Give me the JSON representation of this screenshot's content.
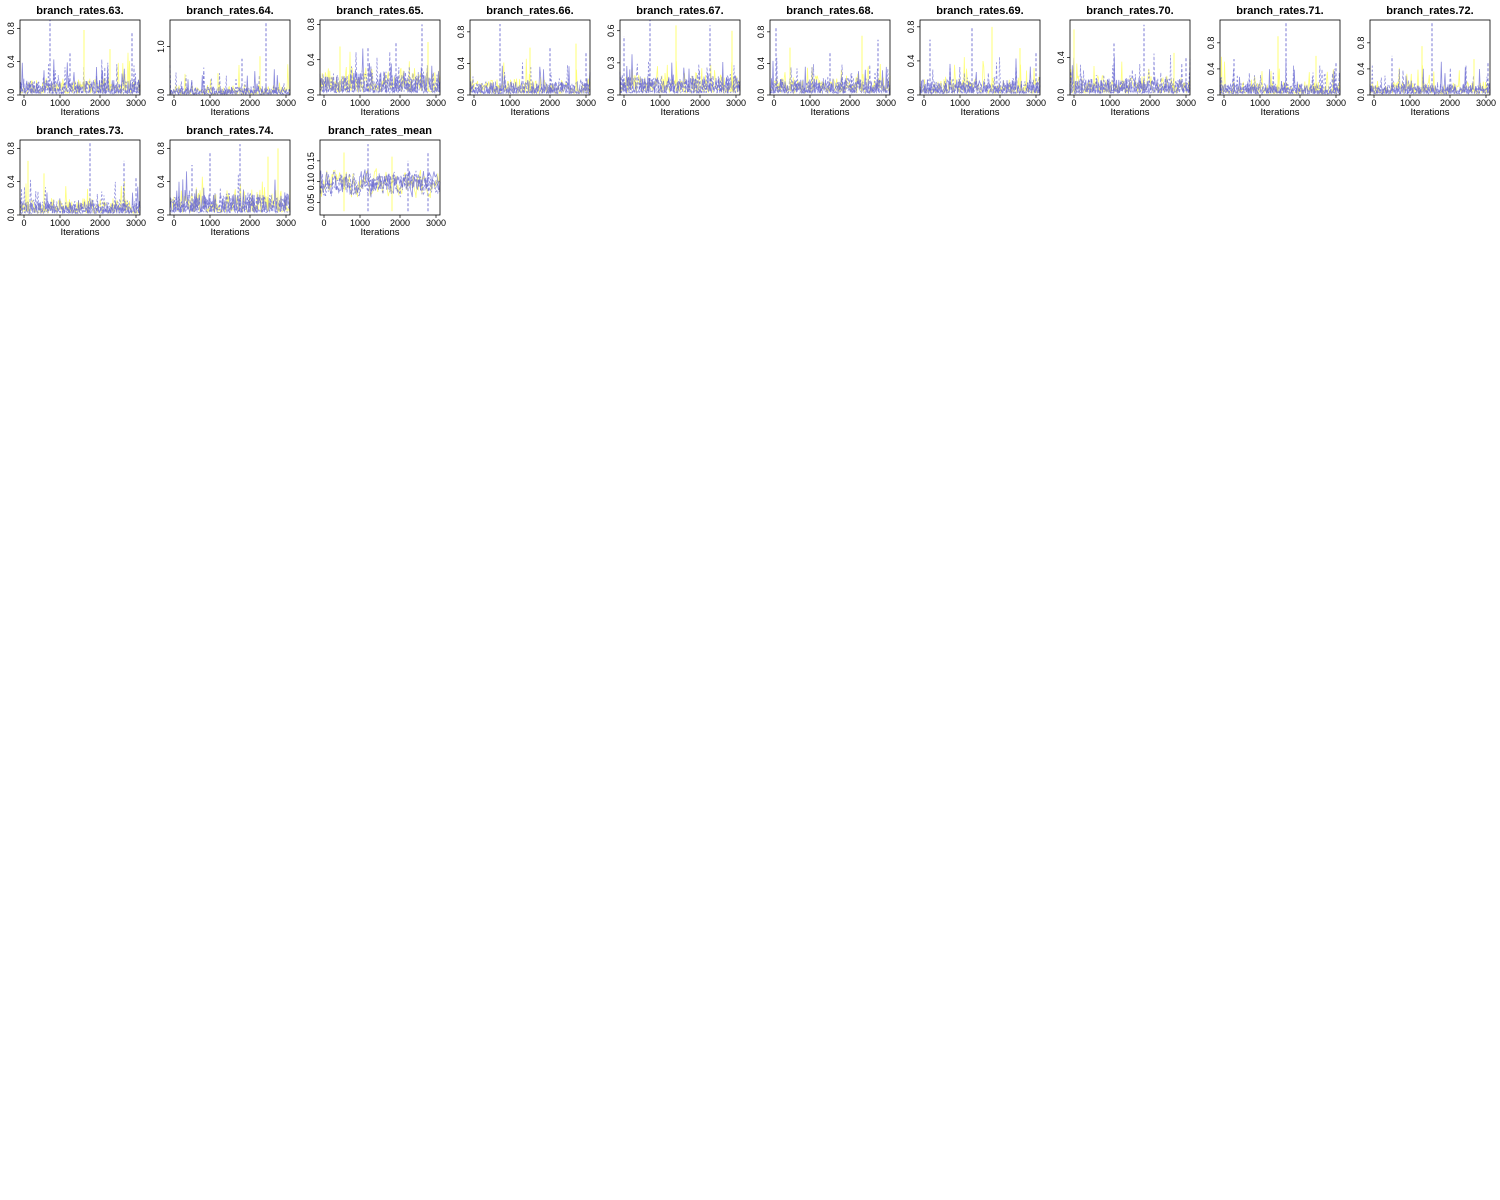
{
  "colors": {
    "chain_yellow": "#ffff66",
    "chain_blue": "#6a6ad2",
    "frame": "#000000",
    "background": "#ffffff"
  },
  "chart_data": [
    {
      "type": "line",
      "title": "branch_rates.63.",
      "xlabel": "Iterations",
      "ylabel": "",
      "xlim": [
        0,
        3000
      ],
      "ylim": [
        0,
        0.9
      ],
      "xticks": [
        "0",
        "1000",
        "2000",
        "3000"
      ],
      "yticks": [
        "0.0",
        "0.4",
        "0.8"
      ],
      "ytick_values": [
        0,
        0.4,
        0.8
      ],
      "series": [
        {
          "values_summary": {
            "typical": 0.1,
            "max": 0.9
          }
        },
        {
          "values_summary": {
            "typical": 0.1,
            "max": 0.75
          }
        }
      ],
      "spikes": [
        [
          750,
          0.9
        ],
        [
          1600,
          0.78
        ],
        [
          2800,
          0.75
        ],
        [
          2250,
          0.55
        ],
        [
          1250,
          0.5
        ]
      ],
      "seed": 63
    },
    {
      "type": "line",
      "title": "branch_rates.64.",
      "xlabel": "Iterations",
      "ylabel": "",
      "xlim": [
        0,
        3000
      ],
      "ylim": [
        0,
        1.55
      ],
      "xticks": [
        "0",
        "1000",
        "2000",
        "3000"
      ],
      "yticks": [
        "0.0",
        "1.0"
      ],
      "ytick_values": [
        0,
        1.0
      ],
      "series": [
        {
          "values_summary": {
            "typical": 0.1,
            "max": 1.5
          }
        }
      ],
      "spikes": [
        [
          2400,
          1.5
        ],
        [
          2250,
          0.8
        ],
        [
          1800,
          0.75
        ],
        [
          1200,
          0.45
        ],
        [
          400,
          0.4
        ]
      ],
      "seed": 64
    },
    {
      "type": "line",
      "title": "branch_rates.65.",
      "xlabel": "Iterations",
      "ylabel": "",
      "xlim": [
        0,
        3000
      ],
      "ylim": [
        0,
        0.85
      ],
      "xticks": [
        "0",
        "1000",
        "2000",
        "3000"
      ],
      "yticks": [
        "0.0",
        "0.4",
        "0.8"
      ],
      "ytick_values": [
        0,
        0.4,
        0.8
      ],
      "series": [
        {
          "values_summary": {
            "typical": 0.15,
            "max": 0.8
          }
        }
      ],
      "spikes": [
        [
          2550,
          0.8
        ],
        [
          2700,
          0.6
        ],
        [
          1200,
          0.55
        ],
        [
          500,
          0.55
        ],
        [
          1900,
          0.6
        ]
      ],
      "seed": 65
    },
    {
      "type": "line",
      "title": "branch_rates.66.",
      "xlabel": "Iterations",
      "ylabel": "",
      "xlim": [
        0,
        3000
      ],
      "ylim": [
        0,
        0.95
      ],
      "xticks": [
        "0",
        "1000",
        "2000",
        "3000"
      ],
      "yticks": [
        "0.0",
        "0.4",
        "0.8"
      ],
      "ytick_values": [
        0,
        0.4,
        0.8
      ],
      "series": [
        {
          "values_summary": {
            "typical": 0.1,
            "max": 0.9
          }
        }
      ],
      "spikes": [
        [
          750,
          0.9
        ],
        [
          1500,
          0.6
        ],
        [
          2000,
          0.6
        ],
        [
          2650,
          0.65
        ],
        [
          2900,
          0.55
        ]
      ],
      "seed": 66
    },
    {
      "type": "line",
      "title": "branch_rates.67.",
      "xlabel": "Iterations",
      "ylabel": "",
      "xlim": [
        0,
        3000
      ],
      "ylim": [
        0,
        0.7
      ],
      "xticks": [
        "0",
        "1000",
        "2000",
        "3000"
      ],
      "yticks": [
        "0.0",
        "0.3",
        "0.6"
      ],
      "ytick_values": [
        0,
        0.3,
        0.6
      ],
      "series": [
        {
          "values_summary": {
            "typical": 0.1,
            "max": 0.7
          }
        }
      ],
      "spikes": [
        [
          750,
          0.7
        ],
        [
          1400,
          0.65
        ],
        [
          2250,
          0.65
        ],
        [
          2800,
          0.6
        ],
        [
          100,
          0.55
        ]
      ],
      "seed": 67
    },
    {
      "type": "line",
      "title": "branch_rates.68.",
      "xlabel": "Iterations",
      "ylabel": "",
      "xlim": [
        0,
        3000
      ],
      "ylim": [
        0,
        0.95
      ],
      "xticks": [
        "0",
        "1000",
        "2000",
        "3000"
      ],
      "yticks": [
        "0.0",
        "0.4",
        "0.8"
      ],
      "ytick_values": [
        0,
        0.4,
        0.8
      ],
      "series": [
        {
          "values_summary": {
            "typical": 0.12,
            "max": 0.85
          }
        }
      ],
      "spikes": [
        [
          150,
          0.85
        ],
        [
          2300,
          0.75
        ],
        [
          2700,
          0.7
        ],
        [
          500,
          0.6
        ],
        [
          1500,
          0.55
        ]
      ],
      "seed": 68
    },
    {
      "type": "line",
      "title": "branch_rates.69.",
      "xlabel": "Iterations",
      "ylabel": "",
      "xlim": [
        0,
        3000
      ],
      "ylim": [
        0,
        0.88
      ],
      "xticks": [
        "0",
        "1000",
        "2000",
        "3000"
      ],
      "yticks": [
        "0.0",
        "0.4",
        "0.8"
      ],
      "ytick_values": [
        0,
        0.4,
        0.8
      ],
      "series": [
        {
          "values_summary": {
            "typical": 0.1,
            "max": 0.8
          }
        }
      ],
      "spikes": [
        [
          1300,
          0.8
        ],
        [
          1800,
          0.8
        ],
        [
          250,
          0.65
        ],
        [
          2500,
          0.55
        ],
        [
          2900,
          0.5
        ]
      ],
      "seed": 69
    },
    {
      "type": "line",
      "title": "branch_rates.70.",
      "xlabel": "Iterations",
      "ylabel": "",
      "xlim": [
        0,
        3000
      ],
      "ylim": [
        0,
        0.8
      ],
      "xticks": [
        "0",
        "1000",
        "2000",
        "3000"
      ],
      "yticks": [
        "0.0",
        "0.4"
      ],
      "ytick_values": [
        0,
        0.4
      ],
      "series": [
        {
          "values_summary": {
            "typical": 0.1,
            "max": 0.75
          }
        }
      ],
      "spikes": [
        [
          1850,
          0.75
        ],
        [
          100,
          0.7
        ],
        [
          1100,
          0.55
        ],
        [
          2600,
          0.45
        ],
        [
          2900,
          0.4
        ]
      ],
      "seed": 70
    },
    {
      "type": "line",
      "title": "branch_rates.71.",
      "xlabel": "Iterations",
      "ylabel": "",
      "xlim": [
        0,
        3000
      ],
      "ylim": [
        0,
        1.15
      ],
      "xticks": [
        "0",
        "1000",
        "2000",
        "3000"
      ],
      "yticks": [
        "0.0",
        "0.4",
        "0.8"
      ],
      "ytick_values": [
        0,
        0.4,
        0.8
      ],
      "series": [
        {
          "values_summary": {
            "typical": 0.1,
            "max": 1.1
          }
        }
      ],
      "spikes": [
        [
          1650,
          1.1
        ],
        [
          1450,
          0.9
        ],
        [
          350,
          0.55
        ],
        [
          2400,
          0.6
        ],
        [
          2900,
          0.5
        ]
      ],
      "seed": 71
    },
    {
      "type": "line",
      "title": "branch_rates.72.",
      "xlabel": "Iterations",
      "ylabel": "",
      "xlim": [
        0,
        3000
      ],
      "ylim": [
        0,
        1.15
      ],
      "xticks": [
        "0",
        "1000",
        "2000",
        "3000"
      ],
      "yticks": [
        "0.0",
        "0.4",
        "0.8"
      ],
      "ytick_values": [
        0,
        0.4,
        0.8
      ],
      "series": [
        {
          "values_summary": {
            "typical": 0.1,
            "max": 1.1
          }
        }
      ],
      "spikes": [
        [
          1550,
          1.1
        ],
        [
          1300,
          0.75
        ],
        [
          550,
          0.6
        ],
        [
          2600,
          0.55
        ],
        [
          2950,
          0.5
        ]
      ],
      "seed": 72
    },
    {
      "type": "line",
      "title": "branch_rates.73.",
      "xlabel": "Iterations",
      "ylabel": "",
      "xlim": [
        0,
        3000
      ],
      "ylim": [
        0,
        0.9
      ],
      "xticks": [
        "0",
        "1000",
        "2000",
        "3000"
      ],
      "yticks": [
        "0.0",
        "0.4",
        "0.8"
      ],
      "ytick_values": [
        0,
        0.4,
        0.8
      ],
      "series": [
        {
          "values_summary": {
            "typical": 0.1,
            "max": 0.88
          }
        }
      ],
      "spikes": [
        [
          1750,
          0.88
        ],
        [
          200,
          0.65
        ],
        [
          2600,
          0.65
        ],
        [
          600,
          0.5
        ],
        [
          2900,
          0.45
        ]
      ],
      "seed": 73
    },
    {
      "type": "line",
      "title": "branch_rates.74.",
      "xlabel": "Iterations",
      "ylabel": "",
      "xlim": [
        0,
        3000
      ],
      "ylim": [
        0,
        0.9
      ],
      "xticks": [
        "0",
        "1000",
        "2000",
        "3000"
      ],
      "yticks": [
        "0.0",
        "0.4",
        "0.8"
      ],
      "ytick_values": [
        0,
        0.4,
        0.8
      ],
      "series": [
        {
          "values_summary": {
            "typical": 0.15,
            "max": 0.85
          }
        }
      ],
      "spikes": [
        [
          1750,
          0.85
        ],
        [
          2700,
          0.8
        ],
        [
          1000,
          0.75
        ],
        [
          2450,
          0.7
        ],
        [
          550,
          0.6
        ]
      ],
      "seed": 74
    },
    {
      "type": "line",
      "title": "branch_rates_mean",
      "xlabel": "Iterations",
      "ylabel": "",
      "xlim": [
        0,
        3000
      ],
      "ylim": [
        0.02,
        0.2
      ],
      "xticks": [
        "0",
        "1000",
        "2000",
        "3000"
      ],
      "yticks": [
        "0.05",
        "0.10",
        "0.15"
      ],
      "ytick_values": [
        0.05,
        0.1,
        0.15
      ],
      "series": [
        {
          "values_summary": {
            "typical": 0.095,
            "max": 0.19
          }
        }
      ],
      "spikes": [
        [
          1200,
          0.19
        ],
        [
          600,
          0.17
        ],
        [
          2700,
          0.17
        ],
        [
          1800,
          0.16
        ],
        [
          2200,
          0.15
        ]
      ],
      "seed": 99
    }
  ]
}
